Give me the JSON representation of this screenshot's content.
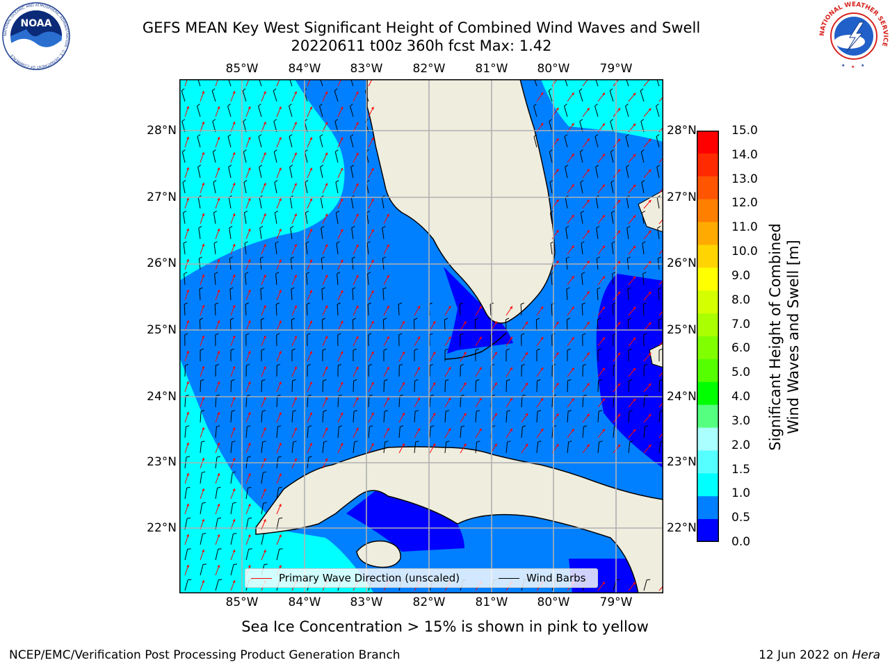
{
  "header": {
    "title_line1": "GEFS MEAN Key West Significant Height of Combined Wind Waves and Swell",
    "title_line2": "20220611 t00z 360h fcst   Max: 1.42"
  },
  "logos": {
    "noaa_text": "NOAA",
    "noaa_ring_text": "NATIONAL OCEANIC AND ATMOSPHERIC ADMINISTRATION · U.S. DEPARTMENT OF COMMERCE",
    "nws_ring_text": "NATIONAL WEATHER SERVICE"
  },
  "map": {
    "lon_labels": [
      "85°W",
      "84°W",
      "83°W",
      "82°W",
      "81°W",
      "80°W",
      "79°W"
    ],
    "lat_labels": [
      "28°N",
      "27°N",
      "26°N",
      "25°N",
      "24°N",
      "23°N",
      "22°N"
    ],
    "lon_range": [
      -86.0,
      -78.3
    ],
    "lat_range": [
      21.0,
      28.8
    ],
    "max_value": 1.42,
    "land_color": "#eeedde",
    "gridline_color": "#b0b0b0",
    "fill_colors": {
      "0.0-0.5": "#0000ff",
      "0.5-1.0": "#0080ff",
      "1.0-1.5": "#00ffff"
    }
  },
  "legend": {
    "items": [
      {
        "label": "Primary Wave Direction (unscaled)",
        "color": "#ff0000"
      },
      {
        "label": "Wind Barbs",
        "color": "#000000"
      }
    ]
  },
  "colorbar": {
    "label_line1": "Significant Height of Combined",
    "label_line2": "Wind Waves and Swell [m]",
    "ticks": [
      "15.0",
      "14.0",
      "13.0",
      "12.0",
      "11.0",
      "10.0",
      "9.0",
      "8.0",
      "7.0",
      "6.0",
      "5.0",
      "4.0",
      "3.0",
      "2.0",
      "1.5",
      "1.0",
      "0.5",
      "0.0"
    ],
    "colors_top_to_bottom": [
      "#ff0000",
      "#ff2a00",
      "#ff5500",
      "#ff7f00",
      "#ffaa00",
      "#ffd400",
      "#ffff00",
      "#d4ff00",
      "#aaff00",
      "#80ff00",
      "#55ff00",
      "#00ff00",
      "#55ff80",
      "#aaffff",
      "#55ffff",
      "#00ffff",
      "#0080ff",
      "#0000ff"
    ]
  },
  "footer": {
    "note": "Sea Ice Concentration > 15% is shown in pink to yellow",
    "credit_left": "NCEP/EMC/Verification Post Processing Product Generation Branch",
    "credit_right_prefix": "12 Jun 2022 on ",
    "credit_right_host": "Hera"
  }
}
